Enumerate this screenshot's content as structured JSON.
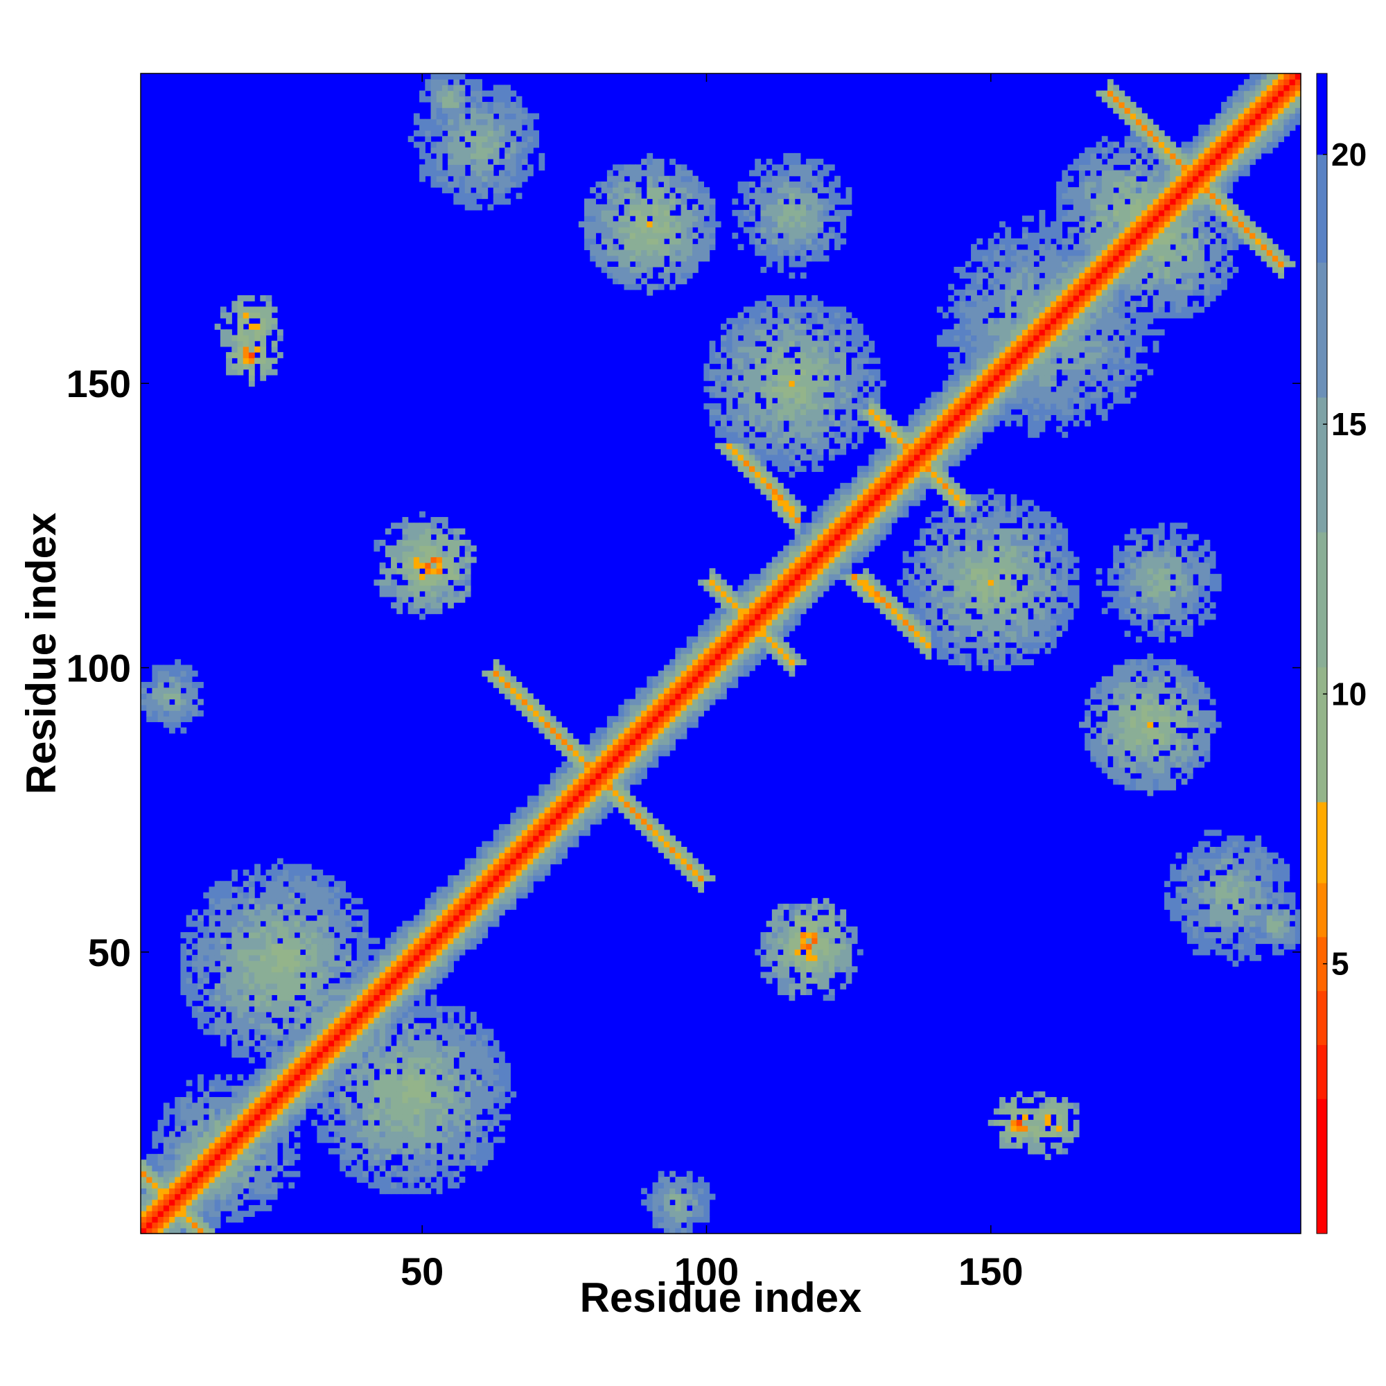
{
  "chart_data": {
    "type": "heatmap",
    "title": "",
    "xlabel": "Residue index",
    "ylabel": "Residue index",
    "n_residues": 204,
    "xlim": [
      1,
      204
    ],
    "ylim": [
      1,
      204
    ],
    "xticks": [
      50,
      100,
      150
    ],
    "yticks": [
      50,
      100,
      150
    ],
    "colorbar": {
      "ticks": [
        5,
        10,
        15,
        20
      ],
      "range": [
        0,
        21.5
      ],
      "colors": [
        "#ff0000",
        "#ff2000",
        "#ff4400",
        "#ff6600",
        "#ff8800",
        "#ffaa00",
        "#94b48a",
        "#8aae96",
        "#7ea2a6",
        "#6c90b8",
        "#5a82c4",
        "#0000ff"
      ],
      "boundaries": [
        0,
        2.5,
        3.5,
        4.5,
        5.5,
        6.5,
        8.0,
        10.5,
        13.0,
        15.5,
        18.0,
        20.0,
        21.5
      ]
    },
    "diagonal": {
      "value": 1.0
    },
    "secondary_structure_contacts": [
      {
        "type": "anti-diagonal",
        "center": [
          6,
          6
        ],
        "length": 12,
        "value": 5.5
      },
      {
        "type": "anti-diagonal",
        "center": [
          81,
          81
        ],
        "length": 36,
        "value": 6.0
      },
      {
        "type": "anti-diagonal",
        "center": [
          108,
          108
        ],
        "length": 14,
        "value": 6.5
      },
      {
        "type": "anti-diagonal",
        "center": [
          137,
          137
        ],
        "length": 16,
        "value": 6.0
      },
      {
        "type": "anti-diagonal",
        "center": [
          186,
          186
        ],
        "length": 30,
        "value": 5.5
      },
      {
        "type": "parallel",
        "from": [
          128,
          115
        ],
        "to": [
          139,
          104
        ],
        "value": 6.0
      },
      {
        "type": "parallel",
        "from": [
          107,
          136
        ],
        "to": [
          116,
          126
        ],
        "value": 6.0
      }
    ],
    "contact_clusters": [
      {
        "center": [
          20,
          155
        ],
        "radius": 5,
        "value": 5
      },
      {
        "center": [
          50,
          118
        ],
        "radius": 9,
        "value": 8
      },
      {
        "center": [
          118,
          52
        ],
        "radius": 8,
        "value": 6
      },
      {
        "center": [
          160,
          20
        ],
        "radius": 6,
        "value": 6
      },
      {
        "center": [
          175,
          180
        ],
        "radius": 14,
        "value": 10
      },
      {
        "center": [
          180,
          175
        ],
        "radius": 14,
        "value": 10
      },
      {
        "center": [
          90,
          178
        ],
        "radius": 12,
        "value": 9
      },
      {
        "center": [
          178,
          90
        ],
        "radius": 12,
        "value": 9
      },
      {
        "center": [
          60,
          192
        ],
        "radius": 13,
        "value": 12
      },
      {
        "center": [
          192,
          60
        ],
        "radius": 13,
        "value": 12
      },
      {
        "center": [
          6,
          95
        ],
        "radius": 7,
        "value": 12
      },
      {
        "center": [
          95,
          6
        ],
        "radius": 7,
        "value": 12
      },
      {
        "center": [
          150,
          115
        ],
        "radius": 16,
        "value": 10
      },
      {
        "center": [
          115,
          150
        ],
        "radius": 16,
        "value": 10
      },
      {
        "center": [
          160,
          160
        ],
        "radius": 22,
        "value": 12
      },
      {
        "center": [
          25,
          48
        ],
        "radius": 18,
        "value": 10
      },
      {
        "center": [
          48,
          25
        ],
        "radius": 18,
        "value": 10
      },
      {
        "center": [
          15,
          15
        ],
        "radius": 14,
        "value": 11
      },
      {
        "center": [
          180,
          115
        ],
        "radius": 12,
        "value": 12
      },
      {
        "center": [
          115,
          180
        ],
        "radius": 12,
        "value": 12
      },
      {
        "center": [
          200,
          55
        ],
        "radius": 6,
        "value": 12
      },
      {
        "center": [
          55,
          200
        ],
        "radius": 6,
        "value": 12
      }
    ]
  }
}
